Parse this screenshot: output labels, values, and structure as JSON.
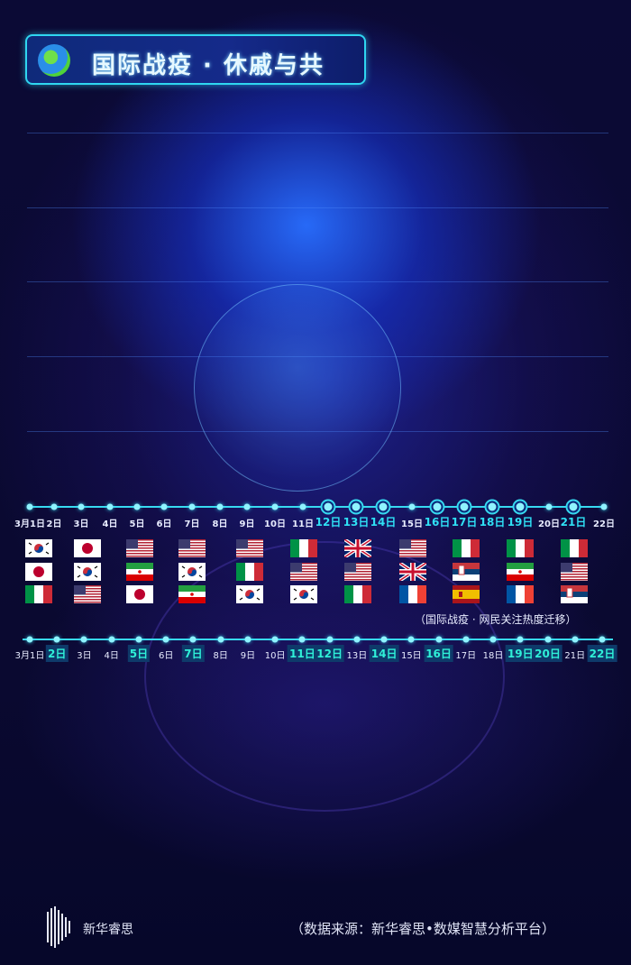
{
  "header": {
    "title": "国际战疫 · 休戚与共",
    "icon": "globe-icon"
  },
  "timeline_top": {
    "dates": [
      "3月1日",
      "2日",
      "3日",
      "4日",
      "5日",
      "6日",
      "7日",
      "8日",
      "9日",
      "10日",
      "11日",
      "12日",
      "13日",
      "14日",
      "15日",
      "16日",
      "17日",
      "18日",
      "19日",
      "20日",
      "21日",
      "22日"
    ],
    "highlighted": [
      "12日",
      "13日",
      "14日",
      "16日",
      "17日",
      "18日",
      "19日",
      "21日"
    ]
  },
  "flag_columns": [
    [
      "KR",
      "JP",
      "IT"
    ],
    [
      "JP",
      "KR",
      "US"
    ],
    [
      "US",
      "IR",
      "JP"
    ],
    [
      "US",
      "KR",
      "IR"
    ],
    [
      "US",
      "IT",
      "KR"
    ],
    [
      "IT",
      "US",
      "KR"
    ],
    [
      "UK",
      "US",
      "IT"
    ],
    [
      "US",
      "UK",
      "FR"
    ],
    [
      "IT",
      "RS",
      "ES"
    ],
    [
      "IT",
      "IR",
      "FR"
    ],
    [
      "IT",
      "US",
      "RS"
    ]
  ],
  "caption": "（国际战疫 · 网民关注热度迁移）",
  "timeline_bottom": {
    "dates": [
      "3月1日",
      "2日",
      "3日",
      "4日",
      "5日",
      "6日",
      "7日",
      "8日",
      "9日",
      "10日",
      "11日",
      "12日",
      "13日",
      "14日",
      "15日",
      "16日",
      "17日",
      "18日",
      "19日",
      "20日",
      "21日",
      "22日"
    ],
    "highlighted": [
      "2日",
      "5日",
      "7日",
      "11日",
      "12日",
      "14日",
      "16日",
      "19日",
      "20日",
      "22日"
    ]
  },
  "footer": {
    "brand": "新华睿思",
    "source": "（数据来源：新华睿思•数媒智慧分析平台）"
  },
  "colors": {
    "accent": "#37d9f0",
    "background": "#0a0930",
    "highlight": "#2fe0f5"
  }
}
